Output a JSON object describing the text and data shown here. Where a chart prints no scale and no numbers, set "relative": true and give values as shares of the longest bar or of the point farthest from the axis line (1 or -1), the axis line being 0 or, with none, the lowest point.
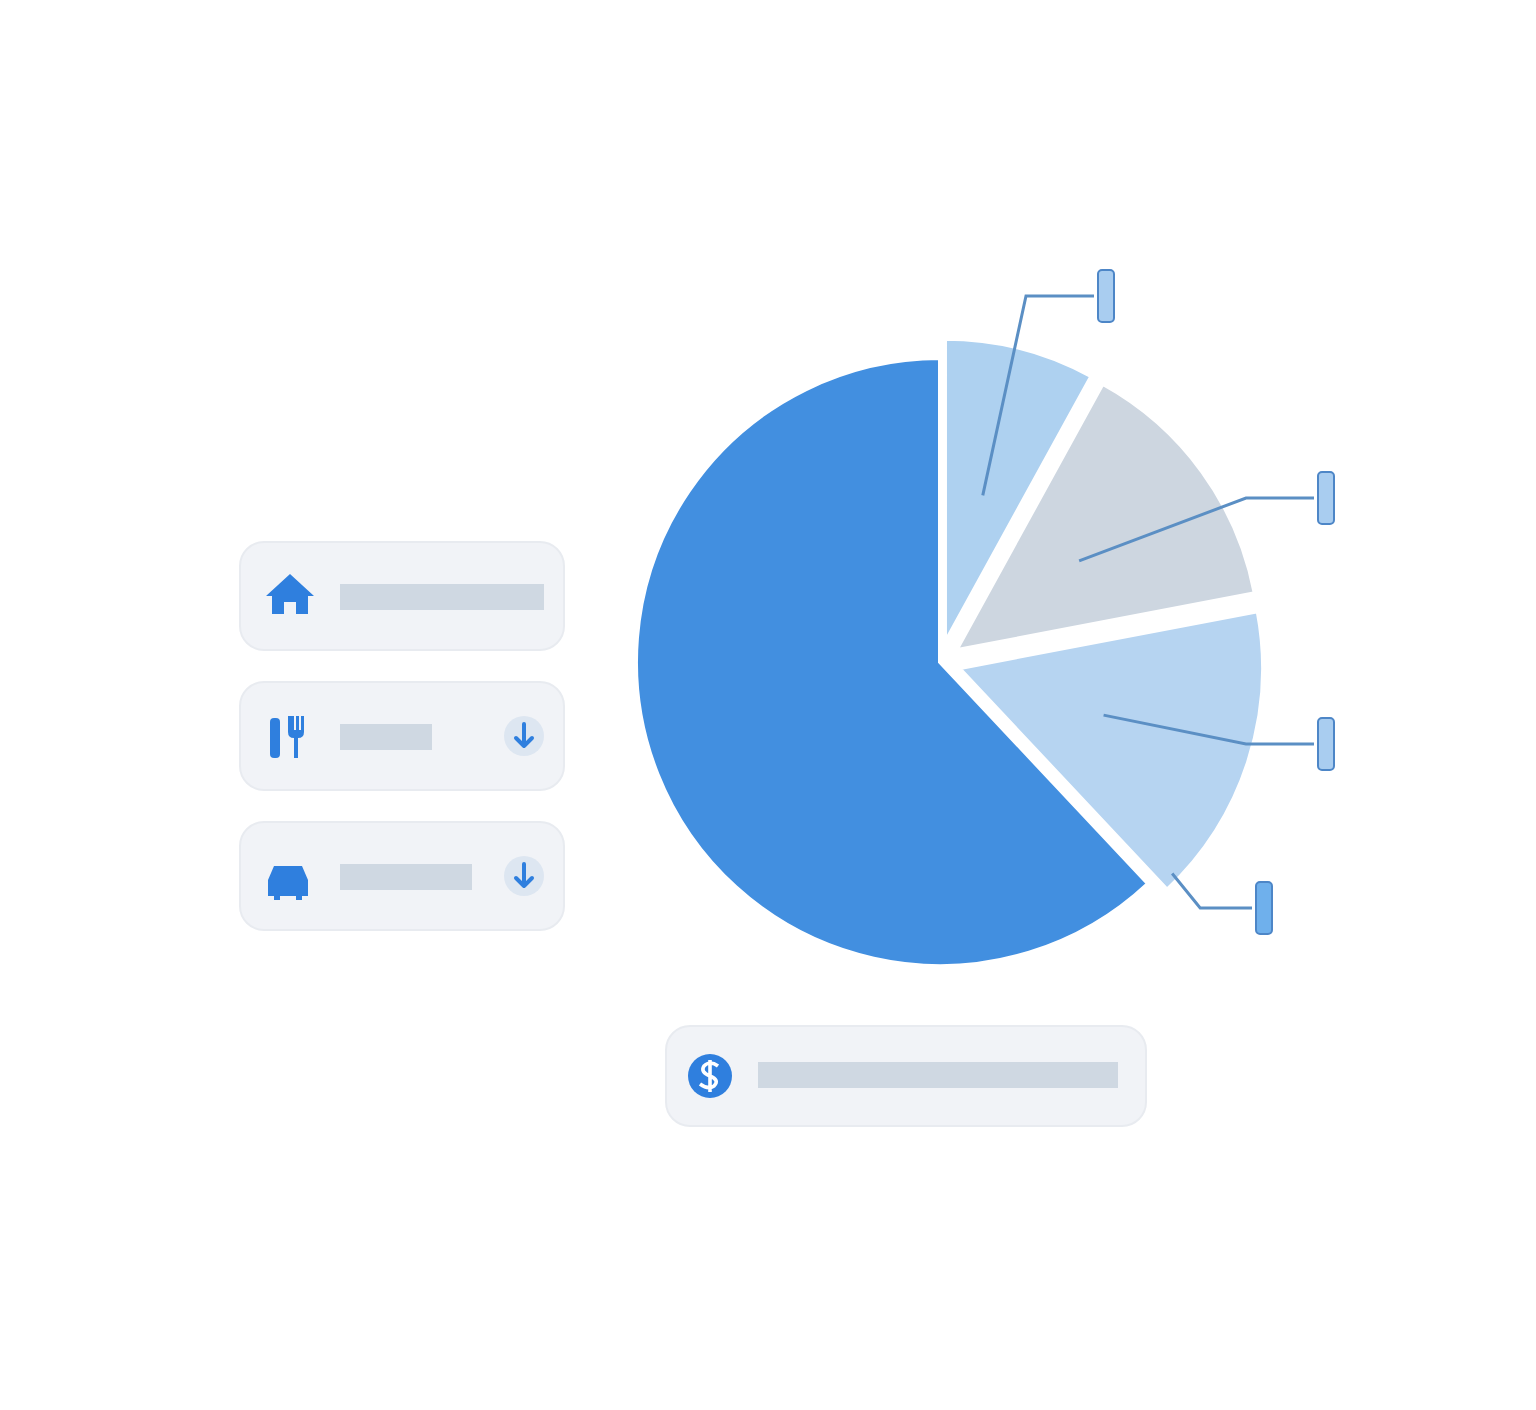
{
  "chart_data": {
    "type": "pie",
    "relative": true,
    "categories": [
      null,
      null,
      null,
      null
    ],
    "values": [
      8,
      14,
      16,
      62
    ],
    "colors": [
      "#aed1f0",
      "#cdd6e0",
      "#b6d4f1",
      "#428fe0"
    ]
  }
}
